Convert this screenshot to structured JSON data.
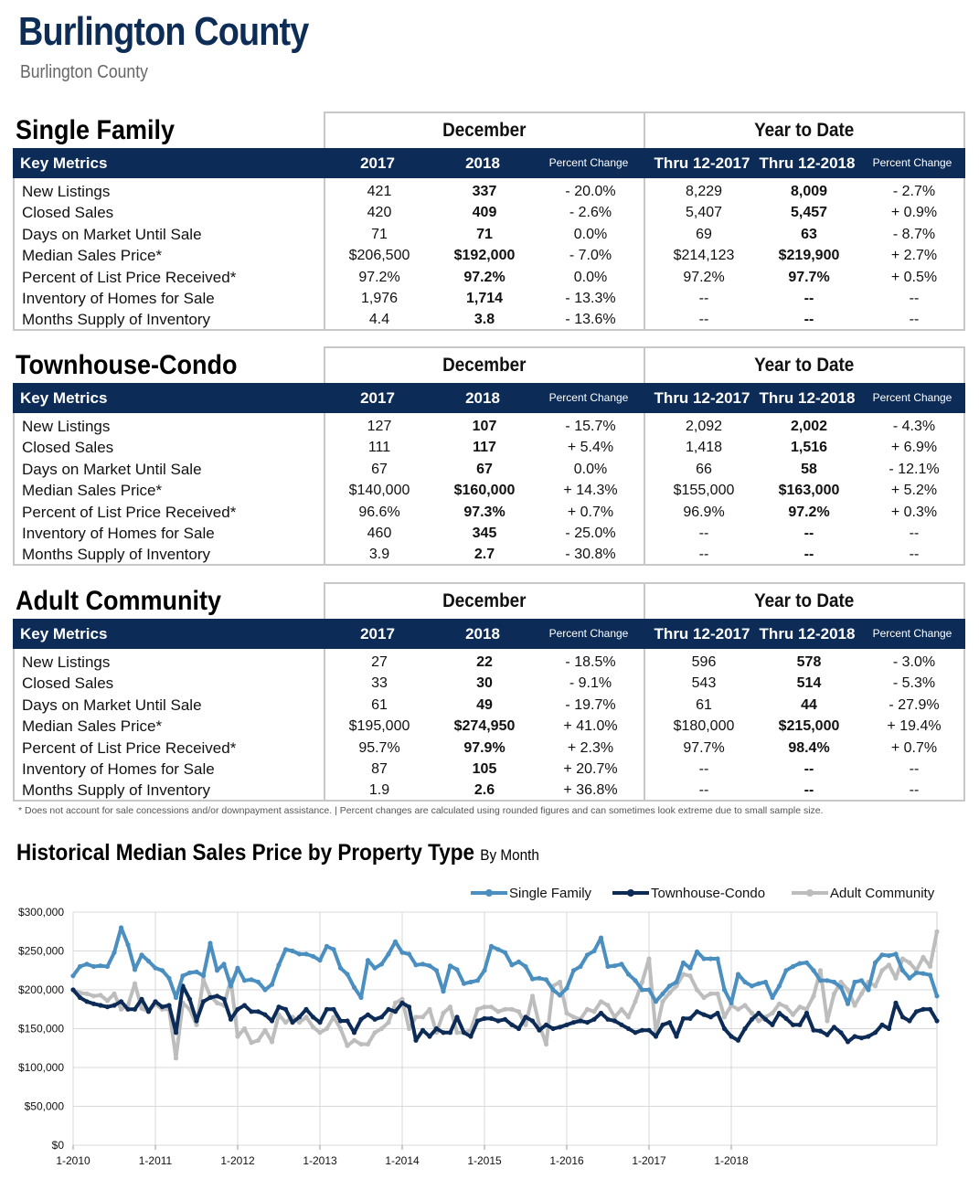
{
  "header": {
    "title": "Burlington County",
    "subtitle": "Burlington County"
  },
  "columns": {
    "key_metrics": "Key Metrics",
    "december": "December",
    "ytd": "Year to Date",
    "y2017": "2017",
    "y2018": "2018",
    "pct": "Percent Change",
    "thru2017": "Thru 12-2017",
    "thru2018": "Thru 12-2018"
  },
  "sections": [
    {
      "title": "Single Family",
      "rows": [
        [
          "New Listings",
          "421",
          "337",
          "- 20.0%",
          "8,229",
          "8,009",
          "- 2.7%"
        ],
        [
          "Closed Sales",
          "420",
          "409",
          "- 2.6%",
          "5,407",
          "5,457",
          "+ 0.9%"
        ],
        [
          "Days on Market Until Sale",
          "71",
          "71",
          "0.0%",
          "69",
          "63",
          "- 8.7%"
        ],
        [
          "Median Sales Price*",
          "$206,500",
          "$192,000",
          "- 7.0%",
          "$214,123",
          "$219,900",
          "+ 2.7%"
        ],
        [
          "Percent of List Price Received*",
          "97.2%",
          "97.2%",
          "0.0%",
          "97.2%",
          "97.7%",
          "+ 0.5%"
        ],
        [
          "Inventory of Homes for Sale",
          "1,976",
          "1,714",
          "- 13.3%",
          "--",
          "--",
          "--"
        ],
        [
          "Months Supply of Inventory",
          "4.4",
          "3.8",
          "- 13.6%",
          "--",
          "--",
          "--"
        ]
      ]
    },
    {
      "title": "Townhouse-Condo",
      "rows": [
        [
          "New Listings",
          "127",
          "107",
          "- 15.7%",
          "2,092",
          "2,002",
          "- 4.3%"
        ],
        [
          "Closed Sales",
          "111",
          "117",
          "+ 5.4%",
          "1,418",
          "1,516",
          "+ 6.9%"
        ],
        [
          "Days on Market Until Sale",
          "67",
          "67",
          "0.0%",
          "66",
          "58",
          "- 12.1%"
        ],
        [
          "Median Sales Price*",
          "$140,000",
          "$160,000",
          "+ 14.3%",
          "$155,000",
          "$163,000",
          "+ 5.2%"
        ],
        [
          "Percent of List Price Received*",
          "96.6%",
          "97.3%",
          "+ 0.7%",
          "96.9%",
          "97.2%",
          "+ 0.3%"
        ],
        [
          "Inventory of Homes for Sale",
          "460",
          "345",
          "- 25.0%",
          "--",
          "--",
          "--"
        ],
        [
          "Months Supply of Inventory",
          "3.9",
          "2.7",
          "- 30.8%",
          "--",
          "--",
          "--"
        ]
      ]
    },
    {
      "title": "Adult Community",
      "rows": [
        [
          "New Listings",
          "27",
          "22",
          "- 18.5%",
          "596",
          "578",
          "- 3.0%"
        ],
        [
          "Closed Sales",
          "33",
          "30",
          "- 9.1%",
          "543",
          "514",
          "- 5.3%"
        ],
        [
          "Days on Market Until Sale",
          "61",
          "49",
          "- 19.7%",
          "61",
          "44",
          "- 27.9%"
        ],
        [
          "Median Sales Price*",
          "$195,000",
          "$274,950",
          "+ 41.0%",
          "$180,000",
          "$215,000",
          "+ 19.4%"
        ],
        [
          "Percent of List Price Received*",
          "95.7%",
          "97.9%",
          "+ 2.3%",
          "97.7%",
          "98.4%",
          "+ 0.7%"
        ],
        [
          "Inventory of Homes for Sale",
          "87",
          "105",
          "+ 20.7%",
          "--",
          "--",
          "--"
        ],
        [
          "Months Supply of Inventory",
          "1.9",
          "2.6",
          "+ 36.8%",
          "--",
          "--",
          "--"
        ]
      ]
    }
  ],
  "footnote": "* Does not account for sale concessions and/or downpayment assistance.  |  Percent changes are calculated using rounded figures and can sometimes look extreme due to small sample size.",
  "chart": {
    "title": "Historical Median Sales Price by Property Type",
    "title_suffix": "By Month"
  },
  "chart_data": {
    "type": "line",
    "title": "Historical Median Sales Price by Property Type By Month",
    "xlabel": "",
    "ylabel": "",
    "ylim": [
      0,
      300000
    ],
    "yticks": [
      0,
      50000,
      100000,
      150000,
      200000,
      250000,
      300000
    ],
    "ytick_labels": [
      "$0",
      "$50,000",
      "$100,000",
      "$150,000",
      "$200,000",
      "$250,000",
      "$300,000"
    ],
    "xticks": [
      "1-2010",
      "1-2011",
      "1-2012",
      "1-2013",
      "1-2014",
      "1-2015",
      "1-2016",
      "1-2017",
      "1-2018"
    ],
    "x_start": "1-2010",
    "x_end": "12-2018",
    "grid": true,
    "legend": "top-right",
    "series": [
      {
        "name": "Single Family",
        "color": "#4a8fc0",
        "values": [
          218000,
          230000,
          233000,
          230000,
          231000,
          230000,
          248000,
          280000,
          258000,
          226000,
          245000,
          237000,
          228000,
          225000,
          215000,
          190000,
          218000,
          222000,
          223000,
          218000,
          260000,
          225000,
          233000,
          205000,
          228000,
          212000,
          213000,
          210000,
          200000,
          207000,
          232000,
          252000,
          250000,
          246000,
          246000,
          243000,
          238000,
          256000,
          252000,
          228000,
          220000,
          203000,
          190000,
          238000,
          228000,
          233000,
          246000,
          262000,
          248000,
          246000,
          232000,
          233000,
          231000,
          225000,
          198000,
          231000,
          226000,
          208000,
          210000,
          212000,
          225000,
          256000,
          252000,
          248000,
          232000,
          236000,
          230000,
          214000,
          215000,
          213000,
          200000,
          193000,
          202000,
          225000,
          230000,
          245000,
          250000,
          267000,
          230000,
          231000,
          233000,
          220000,
          212000,
          200000,
          200000,
          185000,
          195000,
          205000,
          210000,
          235000,
          228000,
          249000,
          240000,
          240000,
          240000,
          200000,
          183000,
          220000,
          210000,
          205000,
          208000,
          210000,
          190000,
          205000,
          225000,
          230000,
          234000,
          235000,
          225000,
          212000,
          212000,
          210000,
          203000,
          182000,
          210000,
          212000,
          200000,
          235000,
          245000,
          244000,
          246000,
          225000,
          215000,
          222000,
          221000,
          219000,
          192000
        ]
      },
      {
        "name": "Townhouse-Condo",
        "color": "#0c2b56",
        "values": [
          200000,
          190000,
          185000,
          182000,
          180000,
          178000,
          180000,
          185000,
          175000,
          175000,
          188000,
          172000,
          185000,
          178000,
          180000,
          145000,
          205000,
          188000,
          160000,
          185000,
          190000,
          192000,
          188000,
          162000,
          175000,
          180000,
          172000,
          172000,
          168000,
          160000,
          178000,
          175000,
          158000,
          165000,
          175000,
          165000,
          158000,
          175000,
          175000,
          160000,
          160000,
          145000,
          162000,
          168000,
          162000,
          165000,
          175000,
          172000,
          183000,
          178000,
          135000,
          148000,
          140000,
          150000,
          145000,
          145000,
          165000,
          145000,
          140000,
          160000,
          163000,
          163000,
          160000,
          162000,
          155000,
          150000,
          165000,
          160000,
          148000,
          155000,
          150000,
          152000,
          155000,
          158000,
          160000,
          158000,
          162000,
          170000,
          162000,
          160000,
          155000,
          150000,
          145000,
          148000,
          148000,
          140000,
          155000,
          158000,
          140000,
          163000,
          163000,
          172000,
          168000,
          165000,
          170000,
          150000,
          140000,
          135000,
          150000,
          162000,
          170000,
          162000,
          155000,
          170000,
          163000,
          155000,
          155000,
          170000,
          148000,
          147000,
          142000,
          152000,
          145000,
          133000,
          140000,
          138000,
          140000,
          145000,
          155000,
          150000,
          183000,
          165000,
          160000,
          172000,
          175000,
          175000,
          160000
        ]
      },
      {
        "name": "Adult Community",
        "color": "#bdbdbd",
        "values": [
          200000,
          196000,
          195000,
          192000,
          193000,
          186000,
          195000,
          175000,
          180000,
          208000,
          176000,
          172000,
          182000,
          175000,
          175000,
          112000,
          183000,
          175000,
          155000,
          213000,
          192000,
          183000,
          180000,
          213000,
          140000,
          150000,
          132000,
          135000,
          148000,
          133000,
          168000,
          158000,
          165000,
          158000,
          165000,
          152000,
          145000,
          150000,
          165000,
          150000,
          128000,
          135000,
          130000,
          130000,
          145000,
          150000,
          158000,
          183000,
          188000,
          150000,
          165000,
          165000,
          175000,
          145000,
          170000,
          178000,
          145000,
          145000,
          148000,
          175000,
          178000,
          178000,
          172000,
          175000,
          175000,
          172000,
          155000,
          192000,
          155000,
          130000,
          205000,
          210000,
          170000,
          165000,
          162000,
          175000,
          172000,
          185000,
          180000,
          165000,
          175000,
          165000,
          185000,
          210000,
          240000,
          145000,
          185000,
          196000,
          205000,
          220000,
          218000,
          200000,
          190000,
          195000,
          195000,
          165000,
          180000,
          175000,
          180000,
          170000,
          160000,
          165000,
          170000,
          182000,
          178000,
          168000,
          178000,
          175000,
          192000,
          225000,
          160000,
          195000,
          210000,
          200000,
          180000,
          195000,
          210000,
          205000,
          225000,
          232000,
          215000,
          240000,
          235000,
          225000,
          242000,
          230000,
          275000
        ]
      }
    ]
  }
}
